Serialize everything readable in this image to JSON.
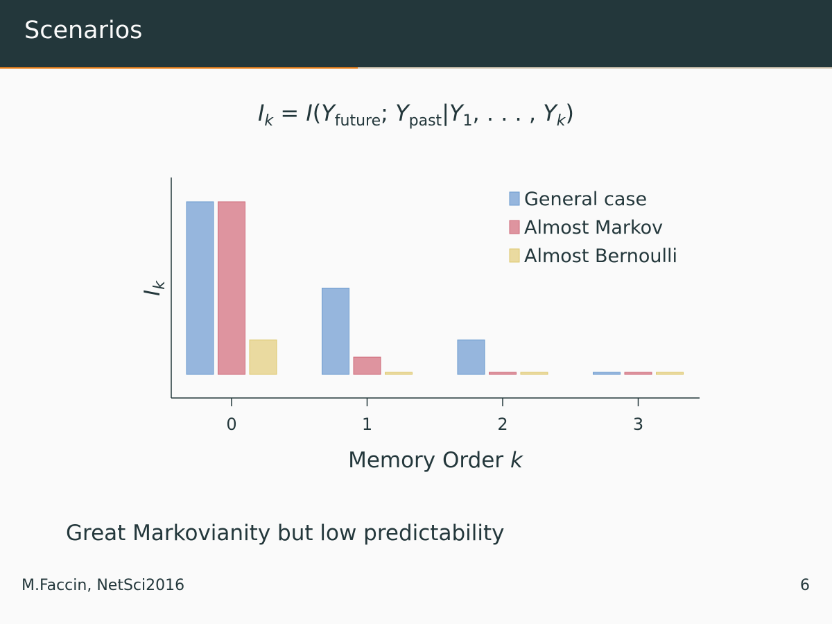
{
  "slide": {
    "title": "Scenarios",
    "progress": 0.43,
    "accent_color": "#eb811b",
    "header_color": "#23373b"
  },
  "formula": {
    "lhs_main": "I",
    "lhs_sub": "k",
    "equals": " = ",
    "fn": "I",
    "open": "(",
    "y1_main": "Y",
    "y1_sub": "future",
    "sep": "; ",
    "y2_main": "Y",
    "y2_sub": "past",
    "bar": "|",
    "y3_main": "Y",
    "y3_sub": "1",
    "dots": ", . . . , ",
    "y4_main": "Y",
    "y4_sub": "k",
    "close": ")"
  },
  "chart_data": {
    "type": "bar",
    "categories": [
      "0",
      "1",
      "2",
      "3"
    ],
    "series": [
      {
        "name": "General case",
        "values": [
          1.0,
          0.5,
          0.2,
          0.01
        ],
        "color": "#96b6dd",
        "stroke": "#6b9bcf"
      },
      {
        "name": "Almost Markov",
        "values": [
          1.0,
          0.1,
          0.01,
          0.01
        ],
        "color": "#de949f",
        "stroke": "#cf6b7a"
      },
      {
        "name": "Almost Bernoulli",
        "values": [
          0.2,
          0.01,
          0.01,
          0.01
        ],
        "color": "#eadaa0",
        "stroke": "#ddc86e"
      }
    ],
    "xlabel_text": "Memory Order ",
    "xlabel_var": "k",
    "ylabel_main": "I",
    "ylabel_sub": "k",
    "ylim": [
      0,
      1.15
    ],
    "legend_position": "top-right",
    "grid": false
  },
  "note": "Great Markovianity but low predictability",
  "footer": {
    "left": "M.Faccin, NetSci2016",
    "page": "6"
  }
}
